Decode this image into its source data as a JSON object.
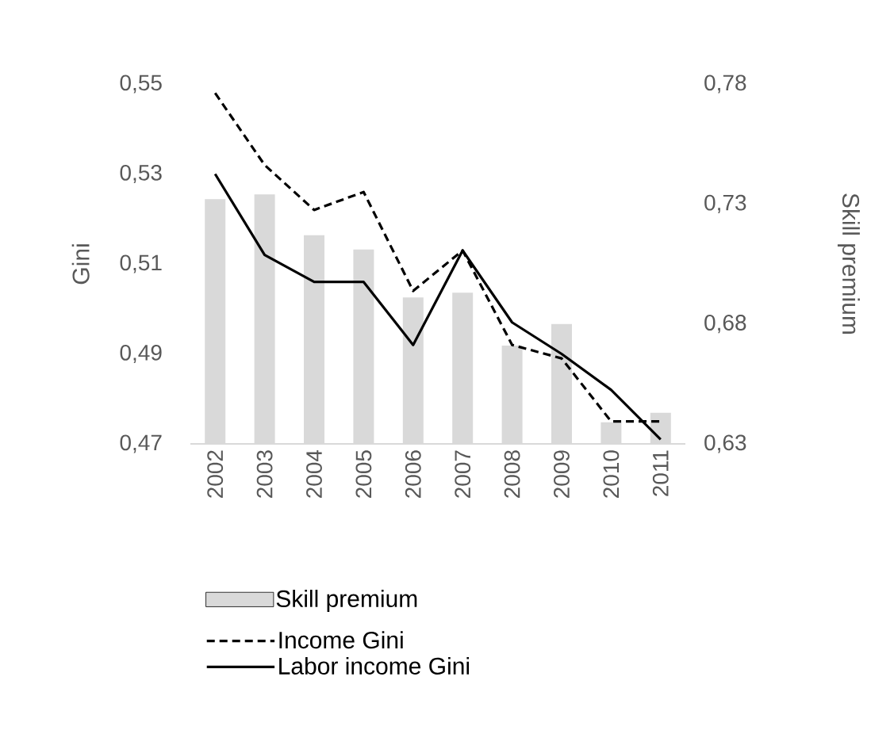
{
  "chart_data": {
    "type": "line",
    "ylabel": "Gini",
    "y2label": "Skill premium",
    "categories": [
      "2002",
      "2003",
      "2004",
      "2005",
      "2006",
      "2007",
      "2008",
      "2009",
      "2010",
      "2011"
    ],
    "series": [
      {
        "name": "Skill premium",
        "type": "bar",
        "axis": "y2",
        "color": "#d9d9d9",
        "values": [
          0.732,
          0.734,
          0.717,
          0.711,
          0.691,
          0.693,
          0.671,
          0.68,
          0.639,
          0.643
        ]
      },
      {
        "name": "Income Gini",
        "color": "#000000",
        "line_style": "dashed",
        "values": [
          0.548,
          0.532,
          0.522,
          0.526,
          0.504,
          0.513,
          0.492,
          0.489,
          0.475,
          0.475
        ]
      },
      {
        "name": "Labor income Gini",
        "color": "#000000",
        "line_style": "solid",
        "values": [
          0.53,
          0.512,
          0.506,
          0.506,
          0.492,
          0.513,
          0.497,
          0.49,
          0.482,
          0.471
        ]
      }
    ],
    "ylim": [
      0.47,
      0.55
    ],
    "yticks": [
      {
        "value": 0.47,
        "label": "0,47"
      },
      {
        "value": 0.49,
        "label": "0,49"
      },
      {
        "value": 0.51,
        "label": "0,51"
      },
      {
        "value": 0.53,
        "label": "0,53"
      },
      {
        "value": 0.55,
        "label": "0,55"
      }
    ],
    "y2lim": [
      0.63,
      0.78
    ],
    "y2ticks": [
      {
        "value": 0.63,
        "label": "0,63"
      },
      {
        "value": 0.68,
        "label": "0,68"
      },
      {
        "value": 0.73,
        "label": "0,73"
      },
      {
        "value": 0.78,
        "label": "0,78"
      }
    ],
    "grid": false,
    "legend": "bottom",
    "marker": "none"
  }
}
